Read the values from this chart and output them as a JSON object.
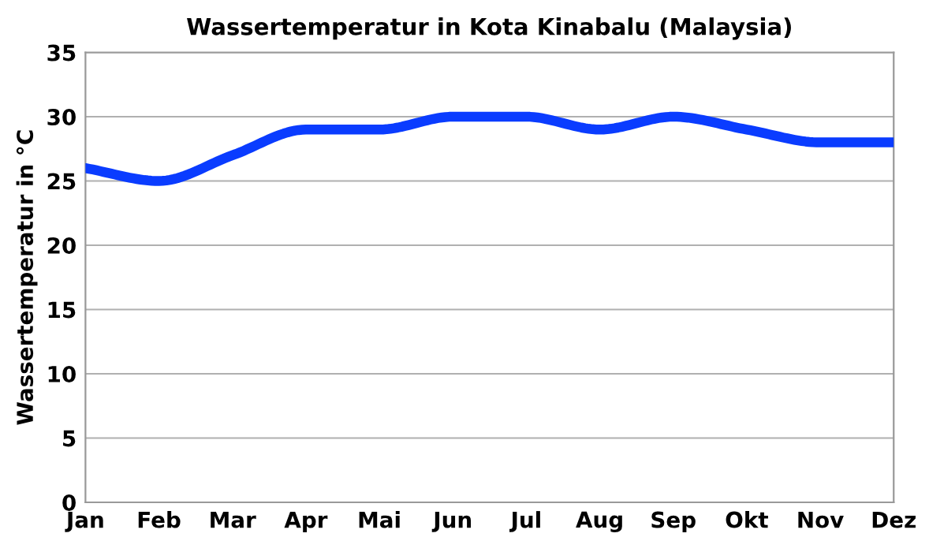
{
  "chart_data": {
    "type": "line",
    "title": "Wassertemperatur in Kota Kinabalu (Malaysia)",
    "ylabel": "Wassertemperatur in °C",
    "categories": [
      "Jan",
      "Feb",
      "Mar",
      "Apr",
      "Mai",
      "Jun",
      "Jul",
      "Aug",
      "Sep",
      "Okt",
      "Nov",
      "Dez"
    ],
    "series": [
      {
        "color": "#0a3cff",
        "values": [
          26,
          25,
          27,
          29,
          29,
          30,
          30,
          29,
          30,
          29,
          28,
          28
        ]
      }
    ],
    "ylim": [
      0,
      35
    ],
    "yticks": [
      0,
      5,
      10,
      15,
      20,
      25,
      30,
      35
    ],
    "grid": "y",
    "legend": false,
    "marker": "none",
    "line_style": "solid"
  }
}
